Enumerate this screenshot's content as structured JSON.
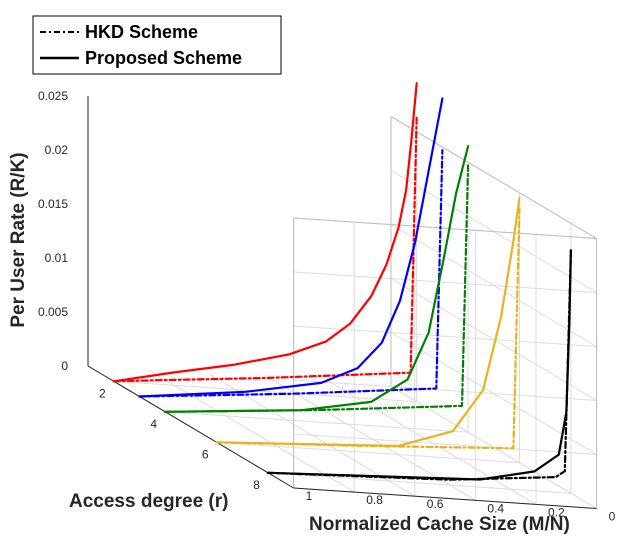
{
  "chart_data": {
    "type": "line",
    "projection": "3d",
    "title": "",
    "xlabel": "Normalized Cache Size (M/N)",
    "ylabel": "Access degree (r)",
    "zlabel": "Per User Rate (R/K)",
    "xlim": [
      0,
      1
    ],
    "ylim": [
      1,
      9
    ],
    "zlim": [
      0,
      0.025
    ],
    "x_ticks": [
      "0",
      "0.2",
      "0.4",
      "0.6",
      "0.8",
      "1"
    ],
    "y_ticks": [
      "2",
      "4",
      "6",
      "8"
    ],
    "z_ticks": [
      "0",
      "0.005",
      "0.01",
      "0.015",
      "0.02",
      "0.025"
    ],
    "grid": true,
    "legend": {
      "position": "top-left",
      "entries": [
        {
          "label": "HKD Scheme",
          "style": "dashdot",
          "color": "#000000"
        },
        {
          "label": "Proposed Scheme",
          "style": "solid",
          "color": "#000000"
        }
      ]
    },
    "series": [
      {
        "name": "HKD Scheme",
        "r": 2,
        "color": "#ff0000",
        "style": "dashdot",
        "points": [
          [
            1.0,
            0.0
          ],
          [
            0.85,
            0.00038
          ],
          [
            0.5,
            0.00125
          ],
          [
            0.02,
            0.00265
          ],
          [
            0.0,
            0.0265
          ]
        ]
      },
      {
        "name": "Proposed Scheme",
        "r": 2,
        "color": "#ff0000",
        "style": "solid",
        "points": [
          [
            1.0,
            0.0
          ],
          [
            0.8,
            0.0012
          ],
          [
            0.6,
            0.0023
          ],
          [
            0.42,
            0.0036
          ],
          [
            0.3,
            0.005
          ],
          [
            0.22,
            0.0068
          ],
          [
            0.15,
            0.0095
          ],
          [
            0.1,
            0.0125
          ],
          [
            0.06,
            0.016
          ],
          [
            0.035,
            0.0195
          ],
          [
            0.018,
            0.024
          ],
          [
            0.0,
            0.0295
          ]
        ]
      },
      {
        "name": "HKD Scheme",
        "r": 3,
        "color": "#0000ff",
        "style": "dashdot",
        "points": [
          [
            1.0,
            0.0
          ],
          [
            0.5,
            0.0012
          ],
          [
            0.02,
            0.0026
          ],
          [
            0.0,
            0.0247
          ]
        ]
      },
      {
        "name": "Proposed Scheme",
        "r": 3,
        "color": "#0000ff",
        "style": "solid",
        "points": [
          [
            1.0,
            0.0
          ],
          [
            0.65,
            0.0011
          ],
          [
            0.4,
            0.0024
          ],
          [
            0.28,
            0.004
          ],
          [
            0.2,
            0.0065
          ],
          [
            0.14,
            0.0105
          ],
          [
            0.09,
            0.016
          ],
          [
            0.05,
            0.022
          ],
          [
            0.0,
            0.0295
          ]
        ]
      },
      {
        "name": "HKD Scheme",
        "r": 4,
        "color": "#008000",
        "style": "dashdot",
        "points": [
          [
            1.0,
            0.0
          ],
          [
            0.5,
            0.0011
          ],
          [
            0.02,
            0.0024
          ],
          [
            0.0,
            0.0247
          ]
        ]
      },
      {
        "name": "Proposed Scheme",
        "r": 4,
        "color": "#008000",
        "style": "solid",
        "points": [
          [
            1.0,
            0.0
          ],
          [
            0.55,
            0.001
          ],
          [
            0.32,
            0.0022
          ],
          [
            0.2,
            0.0045
          ],
          [
            0.13,
            0.009
          ],
          [
            0.08,
            0.016
          ],
          [
            0.04,
            0.022
          ],
          [
            0.0,
            0.0265
          ]
        ]
      },
      {
        "name": "HKD Scheme",
        "r": 6,
        "color": "#edb120",
        "style": "dashdot",
        "points": [
          [
            1.0,
            0.0
          ],
          [
            0.5,
            0.0006
          ],
          [
            0.02,
            0.0013
          ],
          [
            0.0,
            0.0235
          ]
        ]
      },
      {
        "name": "Proposed Scheme",
        "r": 6,
        "color": "#edb120",
        "style": "solid",
        "points": [
          [
            1.0,
            0.0
          ],
          [
            0.4,
            0.0008
          ],
          [
            0.22,
            0.0025
          ],
          [
            0.12,
            0.0065
          ],
          [
            0.06,
            0.0135
          ],
          [
            0.02,
            0.0205
          ],
          [
            0.0,
            0.0245
          ]
        ]
      },
      {
        "name": "HKD Scheme",
        "r": 8,
        "color": "#000000",
        "style": "dashdot",
        "points": [
          [
            1.0,
            0.0
          ],
          [
            0.4,
            0.0005
          ],
          [
            0.05,
            0.0014
          ],
          [
            0.02,
            0.002
          ],
          [
            0.0,
            0.0225
          ]
        ]
      },
      {
        "name": "Proposed Scheme",
        "r": 8,
        "color": "#000000",
        "style": "solid",
        "points": [
          [
            1.0,
            0.0
          ],
          [
            0.3,
            0.0007
          ],
          [
            0.12,
            0.0018
          ],
          [
            0.04,
            0.0035
          ],
          [
            0.015,
            0.0075
          ],
          [
            0.005,
            0.016
          ],
          [
            0.0,
            0.0225
          ]
        ]
      }
    ]
  }
}
